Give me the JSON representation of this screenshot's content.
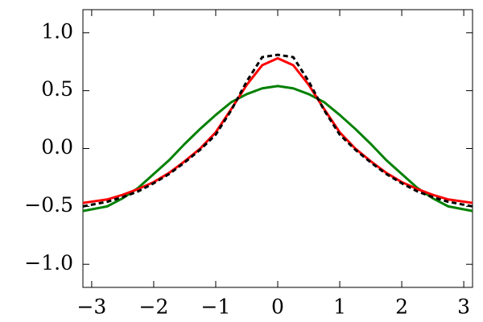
{
  "chart_data": {
    "type": "line",
    "x": [
      -3.1416,
      -2.75,
      -2.5,
      -2.25,
      -2,
      -1.75,
      -1.5,
      -1.25,
      -1,
      -0.75,
      -0.5,
      -0.25,
      0,
      0.25,
      0.5,
      0.75,
      1,
      1.25,
      1.5,
      1.75,
      2,
      2.25,
      2.5,
      2.75,
      3.1416
    ],
    "series": [
      {
        "color": "#008000",
        "linestyle": "solid",
        "values": [
          -0.54,
          -0.5,
          -0.43,
          -0.34,
          -0.22,
          -0.1,
          0.04,
          0.17,
          0.29,
          0.4,
          0.47,
          0.52,
          0.54,
          0.52,
          0.47,
          0.4,
          0.29,
          0.17,
          0.04,
          -0.1,
          -0.22,
          -0.34,
          -0.43,
          -0.5,
          -0.54
        ]
      },
      {
        "color": "#ff0000",
        "linestyle": "solid",
        "values": [
          -0.47,
          -0.44,
          -0.4,
          -0.35,
          -0.29,
          -0.21,
          -0.11,
          0.0,
          0.14,
          0.34,
          0.55,
          0.72,
          0.78,
          0.72,
          0.55,
          0.34,
          0.14,
          0.0,
          -0.11,
          -0.21,
          -0.29,
          -0.35,
          -0.4,
          -0.44,
          -0.47
        ]
      },
      {
        "color": "#000000",
        "linestyle": "dashed",
        "values": [
          -0.5,
          -0.46,
          -0.42,
          -0.37,
          -0.3,
          -0.22,
          -0.12,
          -0.01,
          0.12,
          0.33,
          0.58,
          0.79,
          0.81,
          0.79,
          0.58,
          0.33,
          0.12,
          -0.01,
          -0.12,
          -0.22,
          -0.3,
          -0.37,
          -0.42,
          -0.46,
          -0.5
        ]
      }
    ],
    "xlim": [
      -3.1416,
      3.1416
    ],
    "ylim": [
      -1.2,
      1.2
    ],
    "xticks": [
      {
        "value": -3,
        "label": "−3"
      },
      {
        "value": -2,
        "label": "−2"
      },
      {
        "value": -1,
        "label": "−1"
      },
      0,
      1,
      2,
      3
    ],
    "yticks": [
      {
        "value": -1,
        "label": "−1.0"
      },
      {
        "value": -0.5,
        "label": "−0.5"
      },
      {
        "value": 0,
        "label": "0.0"
      },
      0.5,
      {
        "value": 1,
        "label": "1.0"
      }
    ]
  }
}
